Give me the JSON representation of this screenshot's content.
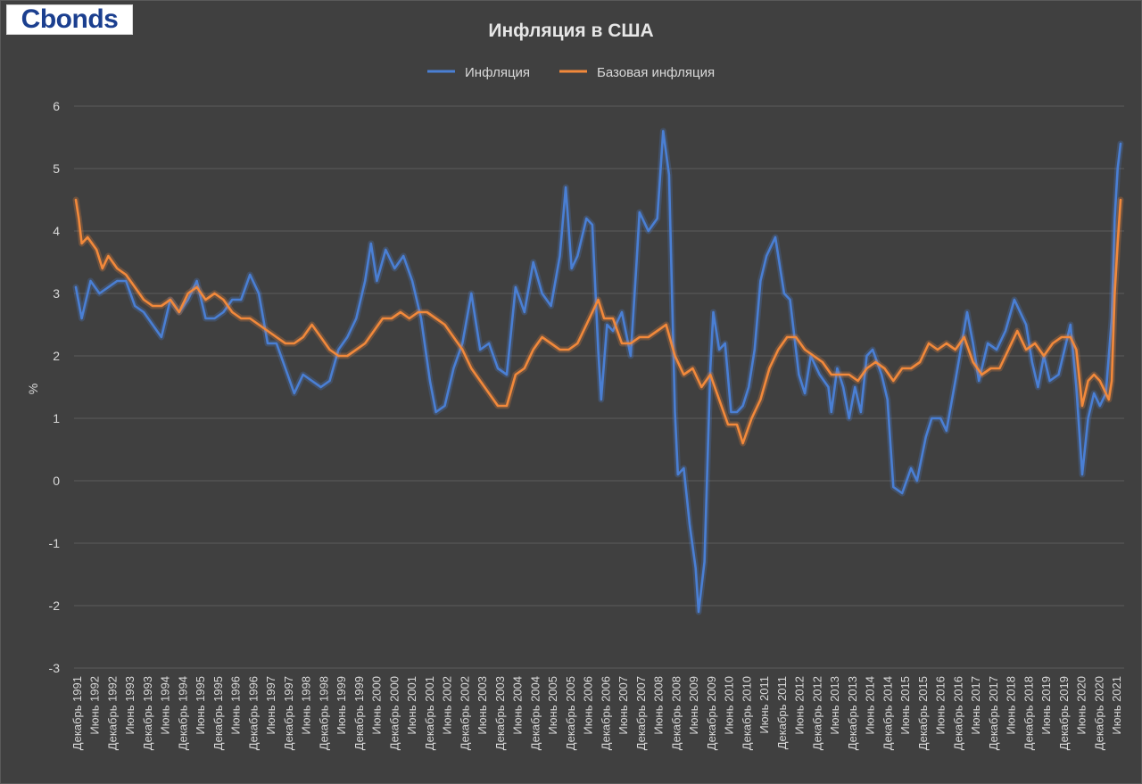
{
  "logo": {
    "text": "Cbonds"
  },
  "chart_data": {
    "type": "line",
    "title": "Инфляция в США",
    "ylabel": "%",
    "ylim": [
      -3,
      6
    ],
    "yticks": [
      -3,
      -2,
      -1,
      0,
      1,
      2,
      3,
      4,
      5,
      6
    ],
    "grid": true,
    "legend": "top-center",
    "x_start": "1991-12",
    "x_end": "2021-06",
    "xticks": [
      "Декабрь 1991",
      "Июнь 1992",
      "Декабрь 1992",
      "Июнь 1993",
      "Декабрь 1993",
      "Июнь 1994",
      "Декабрь 1994",
      "Июнь 1995",
      "Декабрь 1995",
      "Июнь 1996",
      "Декабрь 1996",
      "Июнь 1997",
      "Декабрь 1997",
      "Июнь 1998",
      "Декабрь 1998",
      "Июнь 1999",
      "Декабрь 1999",
      "Июнь 2000",
      "Декабрь 2000",
      "Июнь 2001",
      "Декабрь 2001",
      "Июнь 2002",
      "Декабрь 2002",
      "Июнь 2003",
      "Декабрь 2003",
      "Июнь 2004",
      "Декабрь 2004",
      "Июнь 2005",
      "Декабрь 2005",
      "Июнь 2006",
      "Декабрь 2006",
      "Июнь 2007",
      "Декабрь 2007",
      "Июнь 2008",
      "Декабрь 2008",
      "Июнь 2009",
      "Декабрь 2009",
      "Июнь 2010",
      "Декабрь 2010",
      "Июнь 2011",
      "Декабрь 2011",
      "Июнь 2012",
      "Декабрь 2012",
      "Июнь 2013",
      "Декабрь 2013",
      "Июнь 2014",
      "Декабрь 2014",
      "Июнь 2015",
      "Декабрь 2015",
      "Июнь 2016",
      "Декабрь 2016",
      "Июнь 2017",
      "Декабрь 2017",
      "Июнь 2018",
      "Декабрь 2018",
      "Июнь 2019",
      "Декабрь 2019",
      "Июнь 2020",
      "Декабрь 2020",
      "Июнь 2021"
    ],
    "series": [
      {
        "name": "Инфляция",
        "color": "#4a7fd4",
        "points": [
          [
            "1991-12",
            3.1
          ],
          [
            "1992-02",
            2.6
          ],
          [
            "1992-05",
            3.2
          ],
          [
            "1992-08",
            3.0
          ],
          [
            "1992-11",
            3.1
          ],
          [
            "1993-02",
            3.2
          ],
          [
            "1993-05",
            3.2
          ],
          [
            "1993-08",
            2.8
          ],
          [
            "1993-11",
            2.7
          ],
          [
            "1994-02",
            2.5
          ],
          [
            "1994-05",
            2.3
          ],
          [
            "1994-08",
            2.9
          ],
          [
            "1994-11",
            2.7
          ],
          [
            "1995-02",
            2.9
          ],
          [
            "1995-05",
            3.2
          ],
          [
            "1995-08",
            2.6
          ],
          [
            "1995-11",
            2.6
          ],
          [
            "1996-02",
            2.7
          ],
          [
            "1996-05",
            2.9
          ],
          [
            "1996-08",
            2.9
          ],
          [
            "1996-11",
            3.3
          ],
          [
            "1997-02",
            3.0
          ],
          [
            "1997-05",
            2.2
          ],
          [
            "1997-08",
            2.2
          ],
          [
            "1997-11",
            1.8
          ],
          [
            "1998-02",
            1.4
          ],
          [
            "1998-05",
            1.7
          ],
          [
            "1998-08",
            1.6
          ],
          [
            "1998-11",
            1.5
          ],
          [
            "1999-02",
            1.6
          ],
          [
            "1999-05",
            2.1
          ],
          [
            "1999-08",
            2.3
          ],
          [
            "1999-11",
            2.6
          ],
          [
            "2000-02",
            3.2
          ],
          [
            "2000-04",
            3.8
          ],
          [
            "2000-06",
            3.2
          ],
          [
            "2000-09",
            3.7
          ],
          [
            "2000-12",
            3.4
          ],
          [
            "2001-03",
            3.6
          ],
          [
            "2001-06",
            3.2
          ],
          [
            "2001-09",
            2.6
          ],
          [
            "2001-12",
            1.6
          ],
          [
            "2002-02",
            1.1
          ],
          [
            "2002-05",
            1.2
          ],
          [
            "2002-08",
            1.8
          ],
          [
            "2002-11",
            2.2
          ],
          [
            "2003-02",
            3.0
          ],
          [
            "2003-05",
            2.1
          ],
          [
            "2003-08",
            2.2
          ],
          [
            "2003-11",
            1.8
          ],
          [
            "2004-02",
            1.7
          ],
          [
            "2004-05",
            3.1
          ],
          [
            "2004-08",
            2.7
          ],
          [
            "2004-11",
            3.5
          ],
          [
            "2005-02",
            3.0
          ],
          [
            "2005-05",
            2.8
          ],
          [
            "2005-08",
            3.6
          ],
          [
            "2005-10",
            4.7
          ],
          [
            "2005-12",
            3.4
          ],
          [
            "2006-02",
            3.6
          ],
          [
            "2006-05",
            4.2
          ],
          [
            "2006-07",
            4.1
          ],
          [
            "2006-09",
            2.1
          ],
          [
            "2006-10",
            1.3
          ],
          [
            "2006-12",
            2.5
          ],
          [
            "2007-02",
            2.4
          ],
          [
            "2007-05",
            2.7
          ],
          [
            "2007-08",
            2.0
          ],
          [
            "2007-10",
            3.5
          ],
          [
            "2007-11",
            4.3
          ],
          [
            "2008-02",
            4.0
          ],
          [
            "2008-05",
            4.2
          ],
          [
            "2008-07",
            5.6
          ],
          [
            "2008-09",
            4.9
          ],
          [
            "2008-11",
            1.1
          ],
          [
            "2008-12",
            0.1
          ],
          [
            "2009-02",
            0.2
          ],
          [
            "2009-04",
            -0.7
          ],
          [
            "2009-06",
            -1.4
          ],
          [
            "2009-07",
            -2.1
          ],
          [
            "2009-09",
            -1.3
          ],
          [
            "2009-11",
            1.8
          ],
          [
            "2009-12",
            2.7
          ],
          [
            "2010-02",
            2.1
          ],
          [
            "2010-04",
            2.2
          ],
          [
            "2010-06",
            1.1
          ],
          [
            "2010-08",
            1.1
          ],
          [
            "2010-10",
            1.2
          ],
          [
            "2010-12",
            1.5
          ],
          [
            "2011-02",
            2.1
          ],
          [
            "2011-04",
            3.2
          ],
          [
            "2011-06",
            3.6
          ],
          [
            "2011-09",
            3.9
          ],
          [
            "2011-12",
            3.0
          ],
          [
            "2012-02",
            2.9
          ],
          [
            "2012-05",
            1.7
          ],
          [
            "2012-07",
            1.4
          ],
          [
            "2012-09",
            2.0
          ],
          [
            "2012-12",
            1.7
          ],
          [
            "2013-03",
            1.5
          ],
          [
            "2013-04",
            1.1
          ],
          [
            "2013-06",
            1.8
          ],
          [
            "2013-08",
            1.5
          ],
          [
            "2013-10",
            1.0
          ],
          [
            "2013-12",
            1.5
          ],
          [
            "2014-02",
            1.1
          ],
          [
            "2014-04",
            2.0
          ],
          [
            "2014-06",
            2.1
          ],
          [
            "2014-09",
            1.7
          ],
          [
            "2014-11",
            1.3
          ],
          [
            "2015-01",
            -0.1
          ],
          [
            "2015-04",
            -0.2
          ],
          [
            "2015-07",
            0.2
          ],
          [
            "2015-09",
            0.0
          ],
          [
            "2015-12",
            0.7
          ],
          [
            "2016-02",
            1.0
          ],
          [
            "2016-05",
            1.0
          ],
          [
            "2016-07",
            0.8
          ],
          [
            "2016-10",
            1.6
          ],
          [
            "2017-02",
            2.7
          ],
          [
            "2017-04",
            2.2
          ],
          [
            "2017-06",
            1.6
          ],
          [
            "2017-09",
            2.2
          ],
          [
            "2017-12",
            2.1
          ],
          [
            "2018-03",
            2.4
          ],
          [
            "2018-06",
            2.9
          ],
          [
            "2018-08",
            2.7
          ],
          [
            "2018-10",
            2.5
          ],
          [
            "2018-12",
            1.9
          ],
          [
            "2019-02",
            1.5
          ],
          [
            "2019-04",
            2.0
          ],
          [
            "2019-06",
            1.6
          ],
          [
            "2019-09",
            1.7
          ],
          [
            "2019-12",
            2.3
          ],
          [
            "2020-01",
            2.5
          ],
          [
            "2020-03",
            1.5
          ],
          [
            "2020-05",
            0.1
          ],
          [
            "2020-07",
            1.0
          ],
          [
            "2020-09",
            1.4
          ],
          [
            "2020-11",
            1.2
          ],
          [
            "2021-01",
            1.4
          ],
          [
            "2021-03",
            2.6
          ],
          [
            "2021-04",
            4.2
          ],
          [
            "2021-05",
            5.0
          ],
          [
            "2021-06",
            5.4
          ]
        ]
      },
      {
        "name": "Базовая инфляция",
        "color": "#f2893b",
        "points": [
          [
            "1991-12",
            4.5
          ],
          [
            "1992-01",
            4.2
          ],
          [
            "1992-02",
            3.8
          ],
          [
            "1992-04",
            3.9
          ],
          [
            "1992-07",
            3.7
          ],
          [
            "1992-09",
            3.4
          ],
          [
            "1992-11",
            3.6
          ],
          [
            "1993-02",
            3.4
          ],
          [
            "1993-05",
            3.3
          ],
          [
            "1993-08",
            3.1
          ],
          [
            "1993-11",
            2.9
          ],
          [
            "1994-02",
            2.8
          ],
          [
            "1994-05",
            2.8
          ],
          [
            "1994-08",
            2.9
          ],
          [
            "1994-11",
            2.7
          ],
          [
            "1995-02",
            3.0
          ],
          [
            "1995-05",
            3.1
          ],
          [
            "1995-08",
            2.9
          ],
          [
            "1995-11",
            3.0
          ],
          [
            "1996-02",
            2.9
          ],
          [
            "1996-05",
            2.7
          ],
          [
            "1996-08",
            2.6
          ],
          [
            "1996-11",
            2.6
          ],
          [
            "1997-02",
            2.5
          ],
          [
            "1997-05",
            2.4
          ],
          [
            "1997-08",
            2.3
          ],
          [
            "1997-11",
            2.2
          ],
          [
            "1998-02",
            2.2
          ],
          [
            "1998-05",
            2.3
          ],
          [
            "1998-08",
            2.5
          ],
          [
            "1998-11",
            2.3
          ],
          [
            "1999-02",
            2.1
          ],
          [
            "1999-05",
            2.0
          ],
          [
            "1999-08",
            2.0
          ],
          [
            "1999-11",
            2.1
          ],
          [
            "2000-02",
            2.2
          ],
          [
            "2000-05",
            2.4
          ],
          [
            "2000-08",
            2.6
          ],
          [
            "2000-11",
            2.6
          ],
          [
            "2001-02",
            2.7
          ],
          [
            "2001-05",
            2.6
          ],
          [
            "2001-08",
            2.7
          ],
          [
            "2001-11",
            2.7
          ],
          [
            "2002-02",
            2.6
          ],
          [
            "2002-05",
            2.5
          ],
          [
            "2002-08",
            2.3
          ],
          [
            "2002-11",
            2.1
          ],
          [
            "2003-02",
            1.8
          ],
          [
            "2003-05",
            1.6
          ],
          [
            "2003-08",
            1.4
          ],
          [
            "2003-11",
            1.2
          ],
          [
            "2004-02",
            1.2
          ],
          [
            "2004-05",
            1.7
          ],
          [
            "2004-08",
            1.8
          ],
          [
            "2004-11",
            2.1
          ],
          [
            "2005-02",
            2.3
          ],
          [
            "2005-05",
            2.2
          ],
          [
            "2005-08",
            2.1
          ],
          [
            "2005-11",
            2.1
          ],
          [
            "2006-02",
            2.2
          ],
          [
            "2006-05",
            2.5
          ],
          [
            "2006-08",
            2.8
          ],
          [
            "2006-09",
            2.9
          ],
          [
            "2006-11",
            2.6
          ],
          [
            "2007-02",
            2.6
          ],
          [
            "2007-05",
            2.2
          ],
          [
            "2007-08",
            2.2
          ],
          [
            "2007-11",
            2.3
          ],
          [
            "2008-02",
            2.3
          ],
          [
            "2008-05",
            2.4
          ],
          [
            "2008-08",
            2.5
          ],
          [
            "2008-11",
            2.0
          ],
          [
            "2009-02",
            1.7
          ],
          [
            "2009-05",
            1.8
          ],
          [
            "2009-08",
            1.5
          ],
          [
            "2009-11",
            1.7
          ],
          [
            "2010-02",
            1.3
          ],
          [
            "2010-05",
            0.9
          ],
          [
            "2010-08",
            0.9
          ],
          [
            "2010-10",
            0.6
          ],
          [
            "2011-01",
            1.0
          ],
          [
            "2011-04",
            1.3
          ],
          [
            "2011-07",
            1.8
          ],
          [
            "2011-10",
            2.1
          ],
          [
            "2012-01",
            2.3
          ],
          [
            "2012-04",
            2.3
          ],
          [
            "2012-07",
            2.1
          ],
          [
            "2012-10",
            2.0
          ],
          [
            "2013-01",
            1.9
          ],
          [
            "2013-04",
            1.7
          ],
          [
            "2013-07",
            1.7
          ],
          [
            "2013-10",
            1.7
          ],
          [
            "2014-01",
            1.6
          ],
          [
            "2014-04",
            1.8
          ],
          [
            "2014-07",
            1.9
          ],
          [
            "2014-10",
            1.8
          ],
          [
            "2015-01",
            1.6
          ],
          [
            "2015-04",
            1.8
          ],
          [
            "2015-07",
            1.8
          ],
          [
            "2015-10",
            1.9
          ],
          [
            "2016-01",
            2.2
          ],
          [
            "2016-04",
            2.1
          ],
          [
            "2016-07",
            2.2
          ],
          [
            "2016-10",
            2.1
          ],
          [
            "2017-01",
            2.3
          ],
          [
            "2017-04",
            1.9
          ],
          [
            "2017-07",
            1.7
          ],
          [
            "2017-10",
            1.8
          ],
          [
            "2018-01",
            1.8
          ],
          [
            "2018-04",
            2.1
          ],
          [
            "2018-07",
            2.4
          ],
          [
            "2018-10",
            2.1
          ],
          [
            "2019-01",
            2.2
          ],
          [
            "2019-04",
            2.0
          ],
          [
            "2019-07",
            2.2
          ],
          [
            "2019-10",
            2.3
          ],
          [
            "2020-01",
            2.3
          ],
          [
            "2020-03",
            2.1
          ],
          [
            "2020-05",
            1.2
          ],
          [
            "2020-07",
            1.6
          ],
          [
            "2020-09",
            1.7
          ],
          [
            "2020-11",
            1.6
          ],
          [
            "2021-01",
            1.4
          ],
          [
            "2021-02",
            1.3
          ],
          [
            "2021-03",
            1.6
          ],
          [
            "2021-04",
            3.0
          ],
          [
            "2021-05",
            3.8
          ],
          [
            "2021-06",
            4.5
          ]
        ]
      }
    ]
  }
}
